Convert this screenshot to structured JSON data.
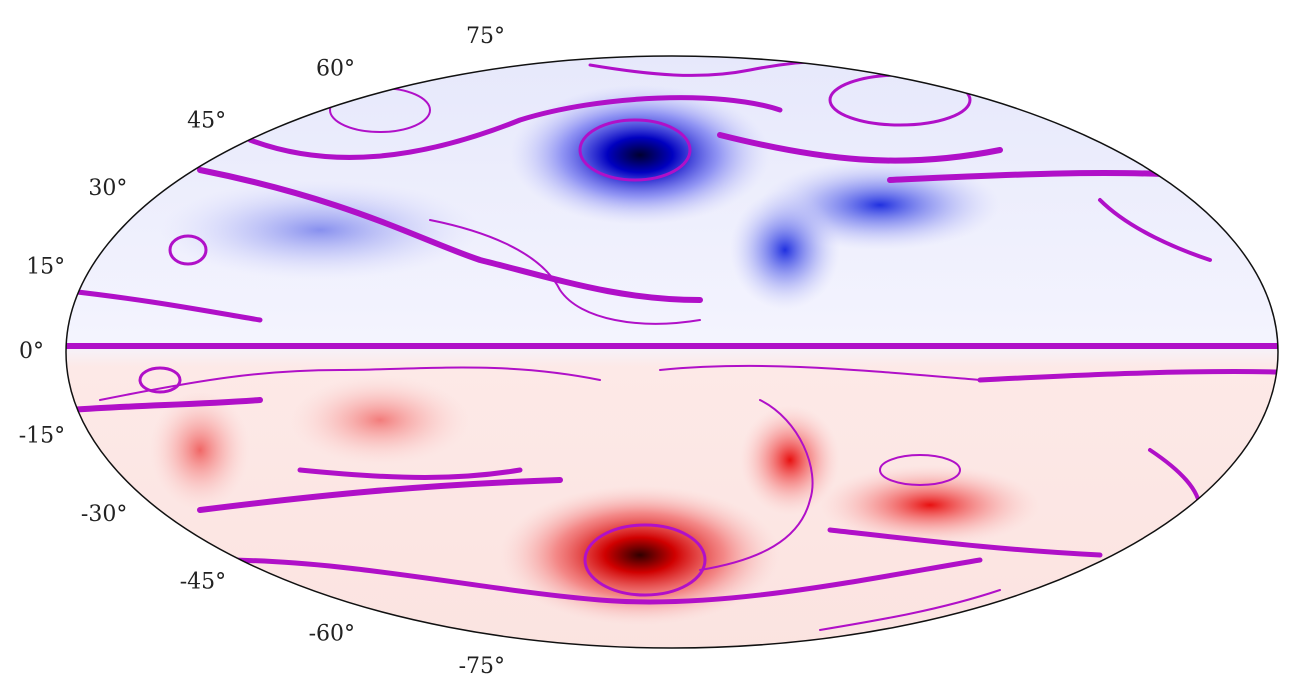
{
  "chart_data": {
    "type": "projection",
    "projection": "hammer",
    "yticks": [
      {
        "value": 75,
        "label": "75°"
      },
      {
        "value": 60,
        "label": "60°"
      },
      {
        "value": 45,
        "label": "45°"
      },
      {
        "value": 30,
        "label": "30°"
      },
      {
        "value": 15,
        "label": "15°"
      },
      {
        "value": 0,
        "label": "0°"
      },
      {
        "value": -15,
        "label": "-15°"
      },
      {
        "value": -30,
        "label": "-30°"
      },
      {
        "value": -45,
        "label": "-45°"
      },
      {
        "value": -60,
        "label": "-60°"
      },
      {
        "value": -75,
        "label": "-75°"
      }
    ]
  }
}
